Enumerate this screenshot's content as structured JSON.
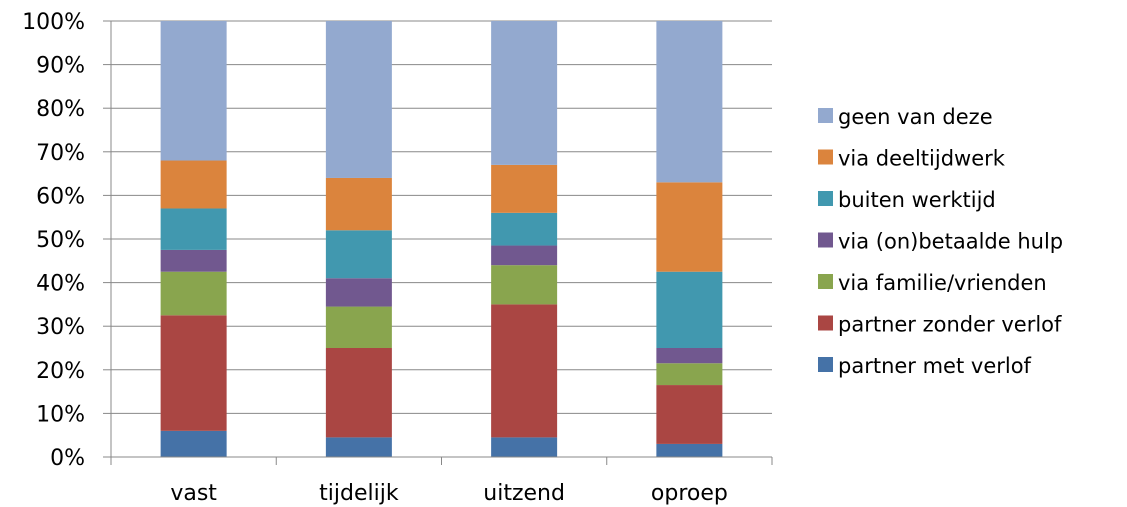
{
  "chart_data": {
    "type": "bar",
    "stacked": true,
    "normalized": true,
    "categories": [
      "vast",
      "tijdelijk",
      "uitzend",
      "oproep"
    ],
    "ylim": [
      0,
      100
    ],
    "yticks": [
      "0%",
      "10%",
      "20%",
      "30%",
      "40%",
      "50%",
      "60%",
      "70%",
      "80%",
      "90%",
      "100%"
    ],
    "grid": true,
    "legend_position": "right",
    "series": [
      {
        "name": "partner met verlof",
        "color": "#4572A7",
        "values": [
          6,
          4.5,
          4.5,
          3
        ]
      },
      {
        "name": "partner zonder verlof",
        "color": "#AA4643",
        "values": [
          26.5,
          20.5,
          30.5,
          13.5
        ]
      },
      {
        "name": "via familie/vrienden",
        "color": "#89A54E",
        "values": [
          10,
          9.5,
          9,
          5
        ]
      },
      {
        "name": "via (on)betaalde hulp",
        "color": "#71588F",
        "values": [
          5,
          6.5,
          4.5,
          3.5
        ]
      },
      {
        "name": "buiten werktijd",
        "color": "#4198AF",
        "values": [
          9.5,
          11,
          7.5,
          17.5
        ]
      },
      {
        "name": "via deeltijdwerk",
        "color": "#DB843D",
        "values": [
          11,
          12,
          11,
          20.5
        ]
      },
      {
        "name": "geen van deze",
        "color": "#93A9CF",
        "values": [
          32,
          36,
          33,
          37
        ]
      }
    ]
  }
}
